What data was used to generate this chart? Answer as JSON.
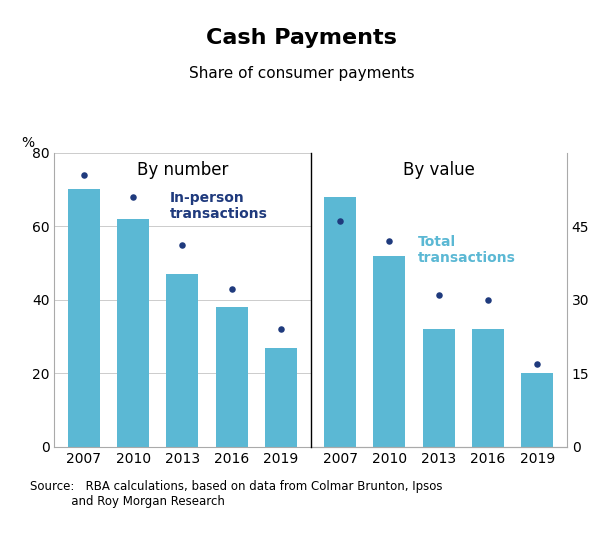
{
  "title": "Cash Payments",
  "subtitle": "Share of consumer payments",
  "source_text": "Source:   RBA calculations, based on data from Colmar Brunton, Ipsos\n           and Roy Morgan Research",
  "left_panel_title": "By number",
  "right_panel_title": "By value",
  "years": [
    2007,
    2010,
    2013,
    2016,
    2019
  ],
  "left_bar_values": [
    70,
    62,
    47,
    38,
    27
  ],
  "left_dot_values": [
    74,
    68,
    55,
    43,
    32
  ],
  "right_bar_values": [
    51,
    39,
    24,
    24,
    15
  ],
  "right_dot_values": [
    46,
    42,
    31,
    30,
    17
  ],
  "ylim_left": [
    0,
    80
  ],
  "ylim_right": [
    0,
    60
  ],
  "right_yticks_data": [
    0,
    15,
    30,
    45
  ],
  "right_ytick_labels": [
    "0",
    "15",
    "30",
    "45"
  ],
  "left_yticks": [
    0,
    20,
    40,
    60,
    80
  ],
  "left_ytick_labels": [
    "0",
    "20",
    "40",
    "60",
    "80"
  ],
  "bar_color": "#5BB8D4",
  "dot_color": "#1F3A7D",
  "left_annotation_text": "In-person\ntransactions",
  "right_annotation_text": "Total\ntransactions",
  "annotation_color_left": "#1F3A7D",
  "annotation_color_right": "#5BB8D4",
  "bg_color": "#ffffff",
  "grid_color": "#cccccc",
  "title_fontsize": 16,
  "subtitle_fontsize": 11,
  "tick_fontsize": 10,
  "panel_title_fontsize": 12
}
